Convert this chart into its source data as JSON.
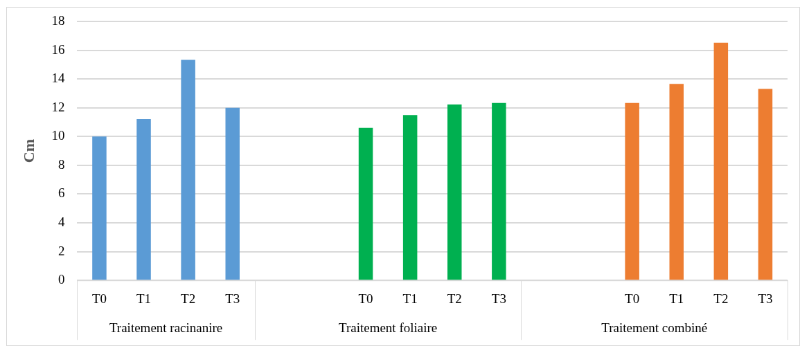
{
  "chart_data": {
    "type": "bar",
    "ylabel": "Cm",
    "categories": [
      "T0",
      "T1",
      "T2",
      "T3",
      null,
      null,
      "T0",
      "T1",
      "T2",
      "T3",
      null,
      null,
      "T0",
      "T1",
      "T2",
      "T3"
    ],
    "series": [
      {
        "color": "#5b9bd5",
        "values": [
          10.0,
          11.22,
          15.33,
          12.0,
          null,
          null,
          null,
          null,
          null,
          null,
          null,
          null,
          null,
          null,
          null,
          null
        ]
      },
      {
        "color": "#00b050",
        "values": [
          null,
          null,
          null,
          null,
          null,
          null,
          10.6,
          11.49,
          12.23,
          12.33,
          null,
          null,
          null,
          null,
          null,
          null
        ]
      },
      {
        "color": "#ed7d31",
        "values": [
          null,
          null,
          null,
          null,
          null,
          null,
          null,
          null,
          null,
          null,
          null,
          null,
          12.33,
          13.66,
          16.52,
          13.31
        ]
      }
    ],
    "annotations": [
      "Traitement racinanire",
      "Traitement foliaire",
      "Traitement combiné"
    ],
    "ylim": [
      0,
      18
    ],
    "yticks": [
      0,
      2,
      4,
      6,
      8,
      10,
      12,
      14,
      16,
      18
    ],
    "grid": "y",
    "legend": false
  }
}
